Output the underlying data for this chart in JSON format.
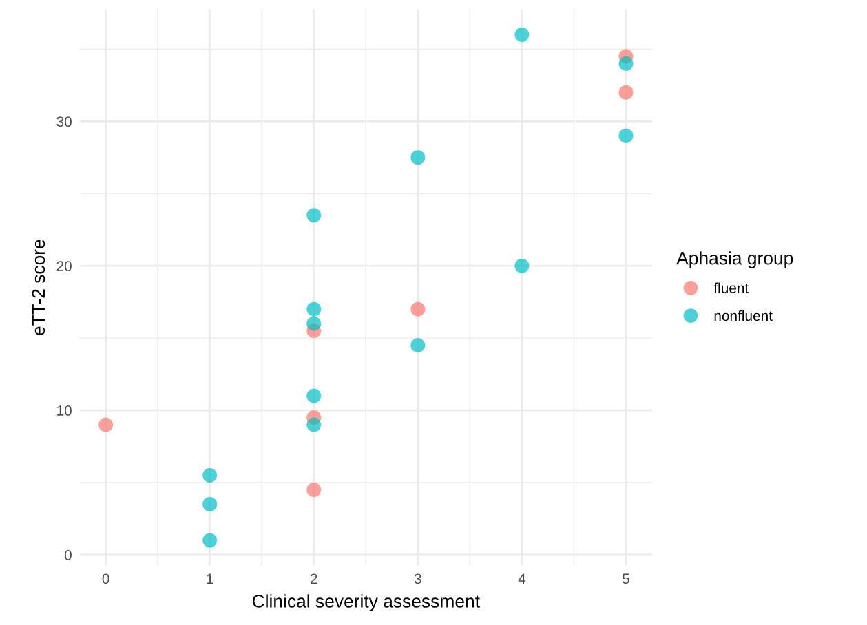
{
  "chart_data": {
    "type": "scatter",
    "xlabel": "Clinical severity assessment",
    "ylabel": "eTT-2 score",
    "legend_title": "Aphasia group",
    "legend": "right",
    "xlim": [
      -0.25,
      5.25
    ],
    "ylim": [
      -0.75,
      37.75
    ],
    "xticks": [
      0,
      1,
      2,
      3,
      4,
      5
    ],
    "yticks": [
      0,
      10,
      20,
      30
    ],
    "grid": true,
    "marker": "circle",
    "series": [
      {
        "name": "fluent",
        "color": "#F8766D",
        "x": [
          0,
          2,
          2,
          2,
          3,
          5,
          5
        ],
        "values": [
          9,
          15.5,
          9.5,
          4.5,
          17,
          34.5,
          32
        ]
      },
      {
        "name": "nonfluent",
        "color": "#00BFC4",
        "x": [
          1,
          1,
          1,
          2,
          2,
          2,
          2,
          2,
          3,
          3,
          4,
          4,
          5,
          5
        ],
        "values": [
          5.5,
          3.5,
          1,
          23.5,
          17,
          16,
          11,
          9,
          27.5,
          14.5,
          36,
          20,
          34,
          29
        ]
      }
    ]
  }
}
